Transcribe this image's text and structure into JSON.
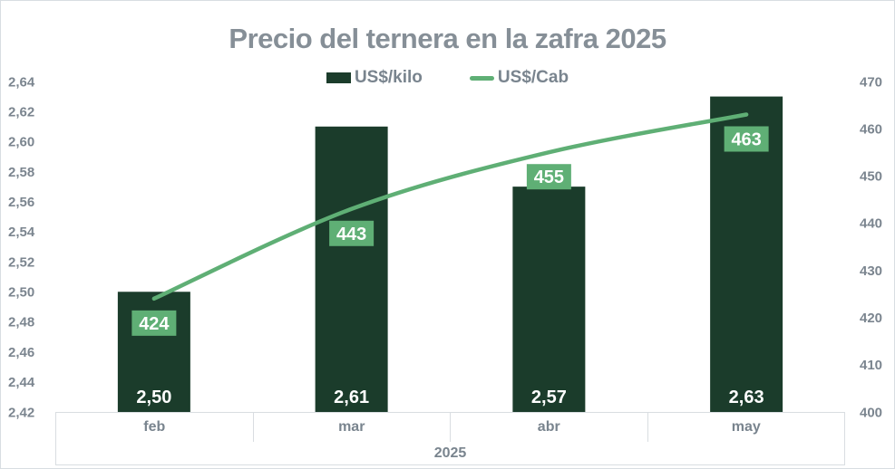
{
  "chart": {
    "title": "Precio del ternera en la zafra 2025",
    "legend": [
      "US$/kilo",
      "US$/Cab"
    ]
  },
  "chart_data": {
    "type": "bar+line",
    "title": "Precio del ternera en la zafra 2025",
    "categories": [
      "feb",
      "mar",
      "abr",
      "may"
    ],
    "x_group_label": "2025",
    "series": [
      {
        "name": "US$/kilo",
        "type": "bar",
        "axis": "left",
        "values": [
          2.5,
          2.61,
          2.57,
          2.63
        ],
        "labels": [
          "2,50",
          "2,61",
          "2,57",
          "2,63"
        ],
        "color": "#1b3c2b"
      },
      {
        "name": "US$/Cab",
        "type": "line",
        "axis": "right",
        "values": [
          424,
          443,
          455,
          463
        ],
        "labels": [
          "424",
          "443",
          "455",
          "463"
        ],
        "color": "#5faf75"
      }
    ],
    "axes": {
      "left": {
        "min": 2.42,
        "max": 2.64,
        "ticks": [
          "2,64",
          "2,62",
          "2,60",
          "2,58",
          "2,56",
          "2,54",
          "2,52",
          "2,50",
          "2,48",
          "2,46",
          "2,44",
          "2,42"
        ]
      },
      "right": {
        "min": 400,
        "max": 470,
        "ticks": [
          "470",
          "460",
          "450",
          "440",
          "430",
          "420",
          "410",
          "400"
        ]
      }
    },
    "grid": false,
    "legend_position": "top",
    "colors": {
      "bar": "#1b3c2b",
      "line": "#5faf75",
      "label_box": "#5faf75",
      "axis_text": "#7b858f",
      "title_text": "#868f97"
    }
  }
}
